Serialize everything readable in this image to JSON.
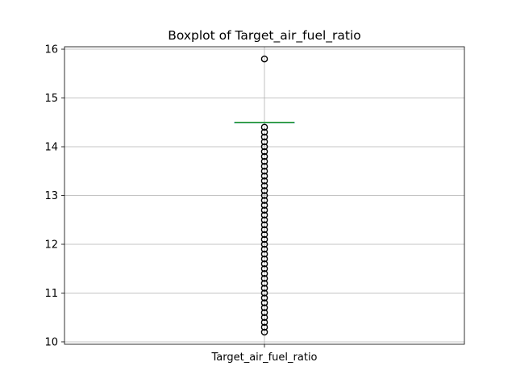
{
  "chart_data": {
    "type": "boxplot",
    "title": "Boxplot of Target_air_fuel_ratio",
    "categories": [
      "Target_air_fuel_ratio"
    ],
    "ylim": [
      9.95,
      16.05
    ],
    "yticks": [
      10,
      11,
      12,
      13,
      14,
      15,
      16
    ],
    "ytick_labels": [
      "10",
      "11",
      "12",
      "13",
      "14",
      "15",
      "16"
    ],
    "grid": true,
    "box": {
      "min": 14.5,
      "q1": 14.5,
      "median": 14.5,
      "q3": 14.5,
      "max": 14.5
    },
    "outliers": [
      10.2,
      10.3,
      10.4,
      10.5,
      10.6,
      10.7,
      10.8,
      10.9,
      11.0,
      11.1,
      11.2,
      11.3,
      11.4,
      11.5,
      11.6,
      11.7,
      11.8,
      11.9,
      12.0,
      12.1,
      12.2,
      12.3,
      12.4,
      12.5,
      12.6,
      12.7,
      12.8,
      12.9,
      13.0,
      13.1,
      13.2,
      13.3,
      13.4,
      13.5,
      13.6,
      13.7,
      13.8,
      13.9,
      14.0,
      14.1,
      14.2,
      14.3,
      14.4,
      15.8
    ],
    "colors": {
      "median": "#2ca02c",
      "box": "#1f77b4",
      "grid": "#b0b0b0",
      "outlier": "#000000"
    }
  }
}
